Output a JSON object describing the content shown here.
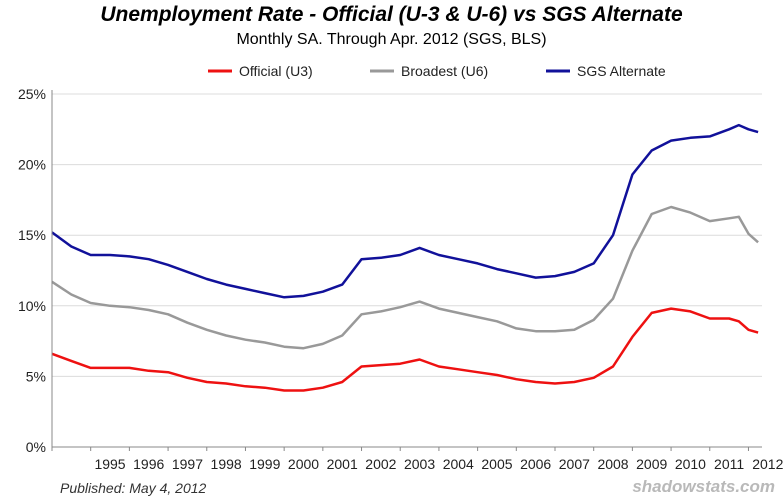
{
  "header": {
    "title": "Unemployment Rate - Official (U-3 & U-6) vs SGS Alternate",
    "subtitle": "Monthly SA. Through Apr. 2012  (SGS, BLS)"
  },
  "footer": {
    "published": "Published: May 4, 2012",
    "watermark": "shadowstats.com"
  },
  "chart_data": {
    "type": "line",
    "title": "Unemployment Rate - Official (U-3 & U-6) vs SGS Alternate",
    "subtitle": "Monthly SA. Through Apr. 2012  (SGS, BLS)",
    "xlabel": "",
    "ylabel": "",
    "xlim": [
      1994.0,
      2012.35
    ],
    "ylim": [
      0,
      25
    ],
    "y_ticks": [
      "0%",
      "5%",
      "10%",
      "15%",
      "20%",
      "25%"
    ],
    "x_ticks": [
      "1995",
      "1996",
      "1997",
      "1998",
      "1999",
      "2000",
      "2001",
      "2002",
      "2003",
      "2004",
      "2005",
      "2006",
      "2007",
      "2008",
      "2009",
      "2010",
      "2011",
      "2012"
    ],
    "grid": true,
    "legend": "top",
    "x": [
      1994.0,
      1994.5,
      1995.0,
      1995.5,
      1996.0,
      1996.5,
      1997.0,
      1997.5,
      1998.0,
      1998.5,
      1999.0,
      1999.5,
      2000.0,
      2000.5,
      2001.0,
      2001.5,
      2002.0,
      2002.5,
      2003.0,
      2003.5,
      2004.0,
      2004.5,
      2005.0,
      2005.5,
      2006.0,
      2006.5,
      2007.0,
      2007.5,
      2008.0,
      2008.5,
      2009.0,
      2009.5,
      2010.0,
      2010.5,
      2011.0,
      2011.5,
      2011.75,
      2012.0,
      2012.25
    ],
    "series": [
      {
        "name": "Official (U3)",
        "color": "#ee1111",
        "values": [
          6.6,
          6.1,
          5.6,
          5.6,
          5.6,
          5.4,
          5.3,
          4.9,
          4.6,
          4.5,
          4.3,
          4.2,
          4.0,
          4.0,
          4.2,
          4.6,
          5.7,
          5.8,
          5.9,
          6.2,
          5.7,
          5.5,
          5.3,
          5.1,
          4.8,
          4.6,
          4.5,
          4.6,
          4.9,
          5.7,
          7.8,
          9.5,
          9.8,
          9.6,
          9.1,
          9.1,
          8.9,
          8.3,
          8.1
        ]
      },
      {
        "name": "Broadest (U6)",
        "color": "#999999",
        "values": [
          11.7,
          10.8,
          10.2,
          10.0,
          9.9,
          9.7,
          9.4,
          8.8,
          8.3,
          7.9,
          7.6,
          7.4,
          7.1,
          7.0,
          7.3,
          7.9,
          9.4,
          9.6,
          9.9,
          10.3,
          9.8,
          9.5,
          9.2,
          8.9,
          8.4,
          8.2,
          8.2,
          8.3,
          9.0,
          10.5,
          13.9,
          16.5,
          17.0,
          16.6,
          16.0,
          16.2,
          16.3,
          15.1,
          14.5
        ]
      },
      {
        "name": "SGS Alternate",
        "color": "#11119a",
        "values": [
          15.2,
          14.2,
          13.6,
          13.6,
          13.5,
          13.3,
          12.9,
          12.4,
          11.9,
          11.5,
          11.2,
          10.9,
          10.6,
          10.7,
          11.0,
          11.5,
          13.3,
          13.4,
          13.6,
          14.1,
          13.6,
          13.3,
          13.0,
          12.6,
          12.3,
          12.0,
          12.1,
          12.4,
          13.0,
          15.0,
          19.3,
          21.0,
          21.7,
          21.9,
          22.0,
          22.5,
          22.8,
          22.5,
          22.3
        ]
      }
    ]
  }
}
